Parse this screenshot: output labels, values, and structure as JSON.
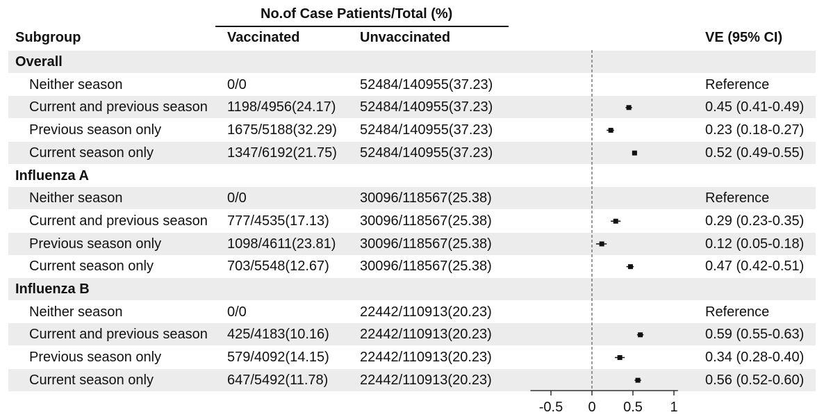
{
  "header": {
    "spanner": "No.of Case Patients/Total (%)",
    "col_subgroup": "Subgroup",
    "col_vaccinated": "Vaccinated",
    "col_unvaccinated": "Unvaccinated",
    "col_ve": "VE (95% CI)"
  },
  "rows": [
    {
      "kind": "group",
      "label": "Overall"
    },
    {
      "kind": "item",
      "label": "Neither season",
      "vacc": "0/0",
      "unvacc": "52484/140955(37.23)",
      "ve": "Reference"
    },
    {
      "kind": "item",
      "label": "Current and previous season",
      "vacc": "1198/4956(24.17)",
      "unvacc": "52484/140955(37.23)",
      "ve": "0.45 (0.41-0.49)"
    },
    {
      "kind": "item",
      "label": "Previous season only",
      "vacc": "1675/5188(32.29)",
      "unvacc": "52484/140955(37.23)",
      "ve": "0.23 (0.18-0.27)"
    },
    {
      "kind": "item",
      "label": "Current season only",
      "vacc": "1347/6192(21.75)",
      "unvacc": "52484/140955(37.23)",
      "ve": "0.52 (0.49-0.55)"
    },
    {
      "kind": "group",
      "label": "Influenza A"
    },
    {
      "kind": "item",
      "label": "Neither season",
      "vacc": "0/0",
      "unvacc": "30096/118567(25.38)",
      "ve": "Reference"
    },
    {
      "kind": "item",
      "label": "Current and previous season",
      "vacc": "777/4535(17.13)",
      "unvacc": "30096/118567(25.38)",
      "ve": "0.29 (0.23-0.35)"
    },
    {
      "kind": "item",
      "label": "Previous season only",
      "vacc": "1098/4611(23.81)",
      "unvacc": "30096/118567(25.38)",
      "ve": "0.12 (0.05-0.18)"
    },
    {
      "kind": "item",
      "label": "Current season only",
      "vacc": "703/5548(12.67)",
      "unvacc": "30096/118567(25.38)",
      "ve": "0.47 (0.42-0.51)"
    },
    {
      "kind": "group",
      "label": "Influenza B"
    },
    {
      "kind": "item",
      "label": "Neither season",
      "vacc": "0/0",
      "unvacc": "22442/110913(20.23)",
      "ve": "Reference"
    },
    {
      "kind": "item",
      "label": "Current and previous season",
      "vacc": "425/4183(10.16)",
      "unvacc": "22442/110913(20.23)",
      "ve": "0.59 (0.55-0.63)"
    },
    {
      "kind": "item",
      "label": "Previous season only",
      "vacc": "579/4092(14.15)",
      "unvacc": "22442/110913(20.23)",
      "ve": "0.34 (0.28-0.40)"
    },
    {
      "kind": "item",
      "label": "Current season only",
      "vacc": "647/5492(11.78)",
      "unvacc": "22442/110913(20.23)",
      "ve": "0.56 (0.52-0.60)"
    }
  ],
  "chart_data": {
    "type": "scatter",
    "title": "",
    "xlabel": "",
    "ylabel": "",
    "xlim": [
      -0.75,
      1.1
    ],
    "xticks": [
      -0.5,
      0,
      0.5,
      1
    ],
    "xtick_labels": [
      "-0.5",
      "0",
      "0.5",
      "1"
    ],
    "reference_line": 0,
    "grid": false,
    "series": [
      {
        "points": [
          {
            "row": 2,
            "estimate": 0.45,
            "lower": 0.41,
            "upper": 0.49
          },
          {
            "row": 3,
            "estimate": 0.23,
            "lower": 0.18,
            "upper": 0.27
          },
          {
            "row": 4,
            "estimate": 0.52,
            "lower": 0.49,
            "upper": 0.55
          },
          {
            "row": 7,
            "estimate": 0.29,
            "lower": 0.23,
            "upper": 0.35
          },
          {
            "row": 8,
            "estimate": 0.12,
            "lower": 0.05,
            "upper": 0.18
          },
          {
            "row": 9,
            "estimate": 0.47,
            "lower": 0.42,
            "upper": 0.51
          },
          {
            "row": 12,
            "estimate": 0.59,
            "lower": 0.55,
            "upper": 0.63
          },
          {
            "row": 13,
            "estimate": 0.34,
            "lower": 0.28,
            "upper": 0.4
          },
          {
            "row": 14,
            "estimate": 0.56,
            "lower": 0.52,
            "upper": 0.6
          }
        ]
      }
    ]
  }
}
